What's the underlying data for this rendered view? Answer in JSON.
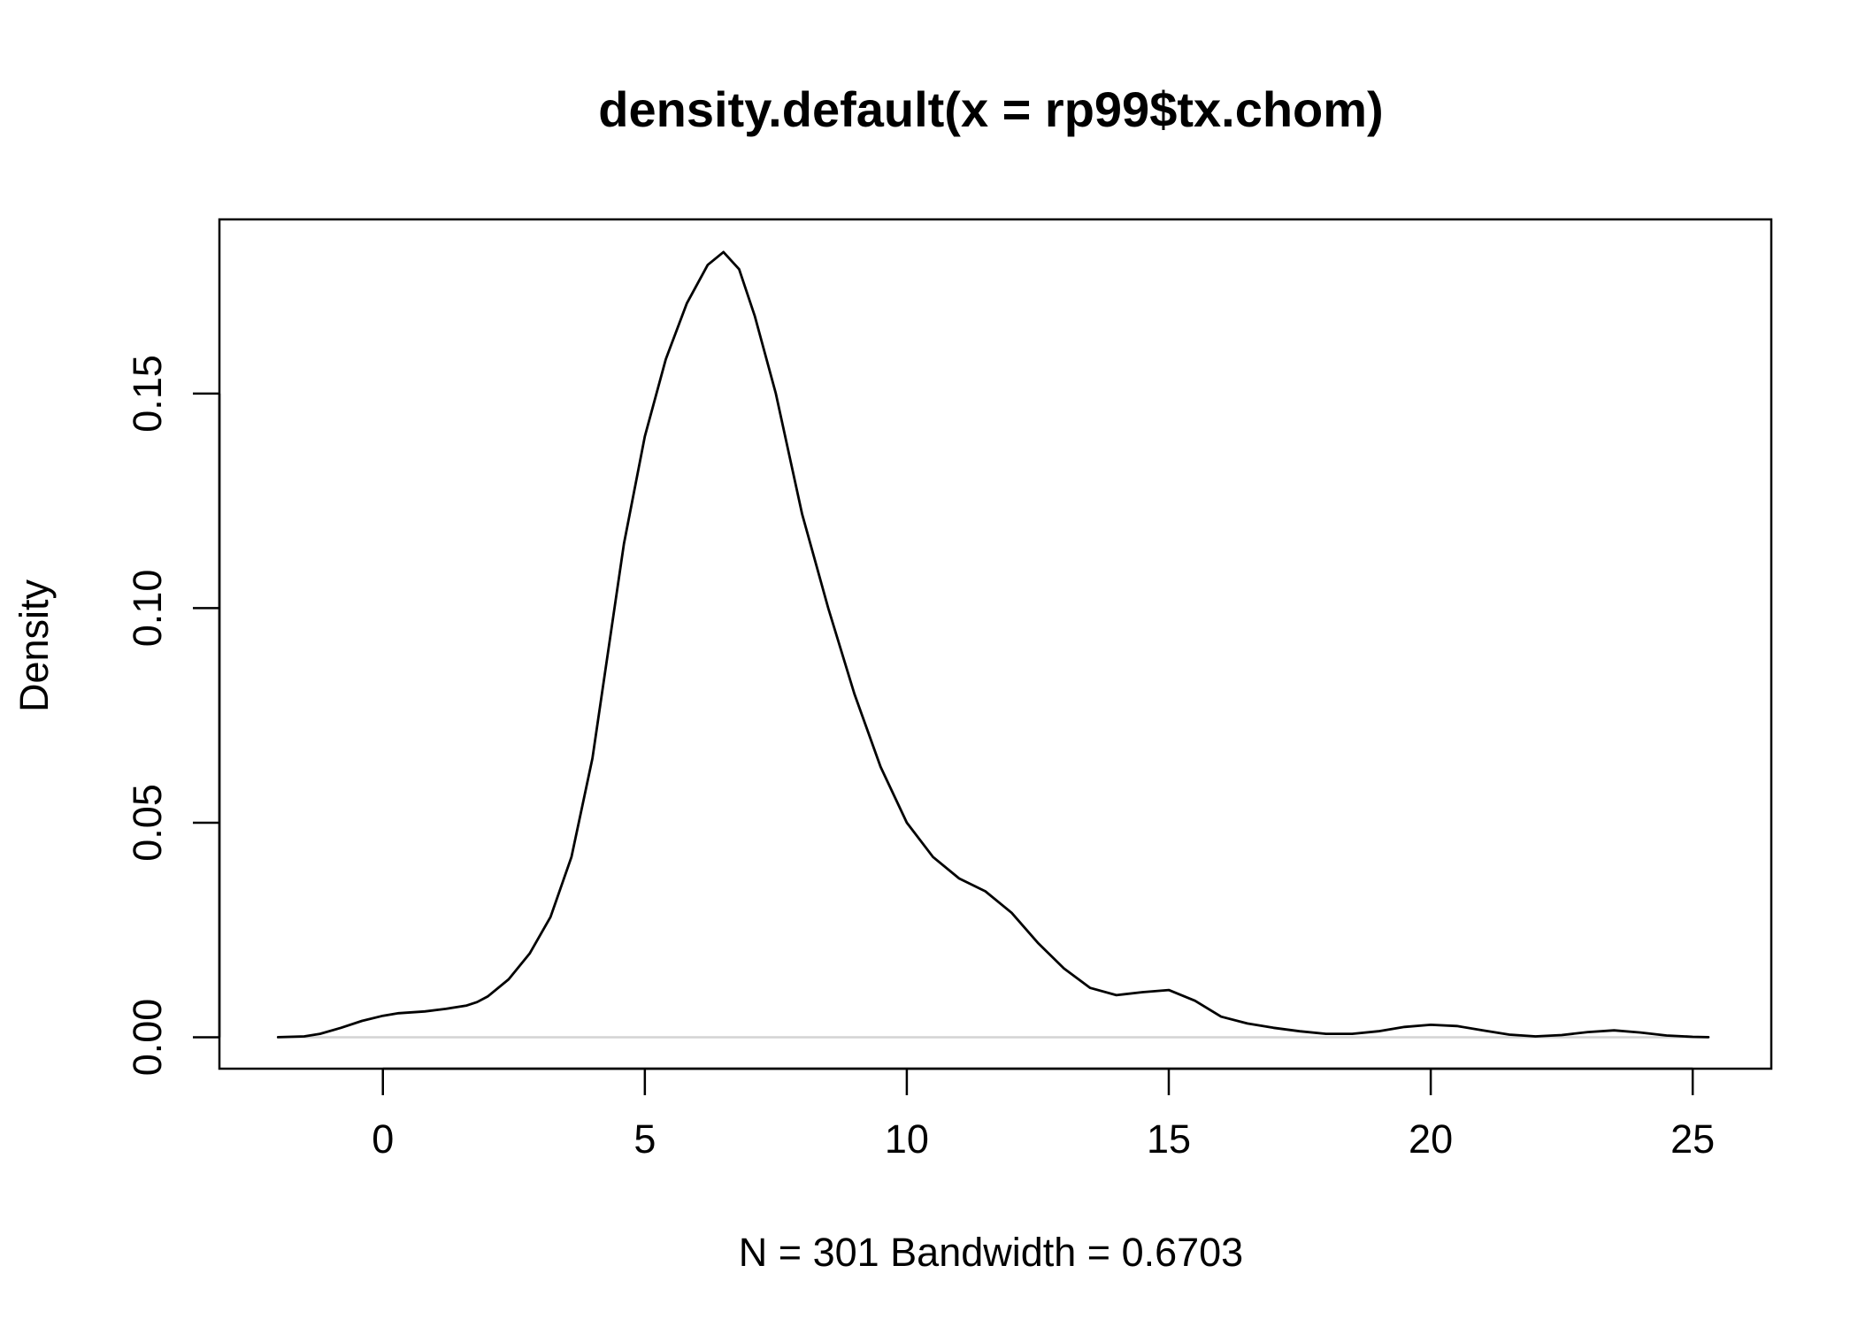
{
  "chart_data": {
    "type": "line",
    "title": "density.default(x = rp99$tx.chom)",
    "xlabel": "N = 301   Bandwidth = 0.6703",
    "ylabel": "Density",
    "xlim": [
      -3.12,
      26.5
    ],
    "ylim": [
      -0.00733,
      0.1906
    ],
    "xticks": [
      0,
      5,
      10,
      15,
      20,
      25
    ],
    "xtick_labels": [
      "0",
      "5",
      "10",
      "15",
      "20",
      "25"
    ],
    "yticks": [
      0.0,
      0.05,
      0.1,
      0.15
    ],
    "ytick_labels": [
      "0.00",
      "0.05",
      "0.10",
      "0.15"
    ],
    "zero_line": true,
    "zero_line_color": "#d3d3d3",
    "line_color": "#000000",
    "grid": false,
    "series": [
      {
        "x": [
          -2.0,
          -1.5,
          -1.2,
          -0.8,
          -0.4,
          0.0,
          0.3,
          0.8,
          1.2,
          1.6,
          1.8,
          2.0,
          2.4,
          2.8,
          3.2,
          3.6,
          4.0,
          4.3,
          4.6,
          5.0,
          5.4,
          5.8,
          6.2,
          6.5,
          6.8,
          7.1,
          7.5,
          8.0,
          8.5,
          9.0,
          9.5,
          10.0,
          10.5,
          11.0,
          11.5,
          12.0,
          12.5,
          13.0,
          13.5,
          14.0,
          14.5,
          15.0,
          15.5,
          16.0,
          16.5,
          17.0,
          17.5,
          18.0,
          18.5,
          19.0,
          19.5,
          20.0,
          20.5,
          21.0,
          21.5,
          22.0,
          22.5,
          23.0,
          23.5,
          24.0,
          24.5,
          25.0,
          25.3
        ],
        "y": [
          0.0,
          0.0002,
          0.0008,
          0.0022,
          0.0038,
          0.005,
          0.0056,
          0.006,
          0.0066,
          0.0074,
          0.0082,
          0.0095,
          0.0135,
          0.0195,
          0.028,
          0.042,
          0.065,
          0.09,
          0.115,
          0.14,
          0.158,
          0.171,
          0.18,
          0.183,
          0.179,
          0.168,
          0.15,
          0.122,
          0.1,
          0.08,
          0.063,
          0.05,
          0.042,
          0.037,
          0.034,
          0.029,
          0.022,
          0.016,
          0.0115,
          0.0098,
          0.0105,
          0.011,
          0.0085,
          0.0048,
          0.0032,
          0.0022,
          0.0014,
          0.0008,
          0.0008,
          0.0014,
          0.0024,
          0.0029,
          0.0026,
          0.0016,
          0.0006,
          0.0002,
          0.0005,
          0.0012,
          0.0016,
          0.0011,
          0.0004,
          0.0001,
          0.0
        ]
      }
    ]
  }
}
